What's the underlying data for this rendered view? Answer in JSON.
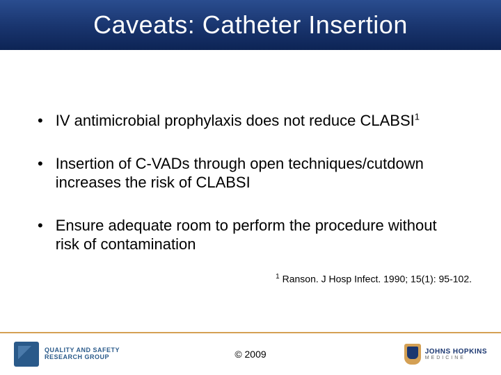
{
  "title": "Caveats: Catheter Insertion",
  "bullets": [
    {
      "text": "IV antimicrobial prophylaxis does not reduce CLABSI",
      "sup": "1"
    },
    {
      "text": "Insertion of C-VADs through open techniques/cutdown increases the risk of CLABSI",
      "sup": ""
    },
    {
      "text": "Ensure adequate room to perform the procedure without risk of contamination",
      "sup": ""
    }
  ],
  "reference": {
    "sup": "1",
    "text": " Ranson. J Hosp Infect. 1990; 15(1): 95-102."
  },
  "footer": {
    "left_logo_line1": "QUALITY AND SAFETY",
    "left_logo_line2": "RESEARCH GROUP",
    "copyright": "© 2009",
    "right_logo_main": "JOHNS HOPKINS",
    "right_logo_sub": "MEDICINE"
  },
  "colors": {
    "title_gradient_top": "#2a4d8f",
    "title_gradient_bottom": "#0d2455",
    "accent_gold": "#d4a054",
    "logo_blue": "#2a5a8a",
    "hopkins_blue": "#1a3670"
  }
}
